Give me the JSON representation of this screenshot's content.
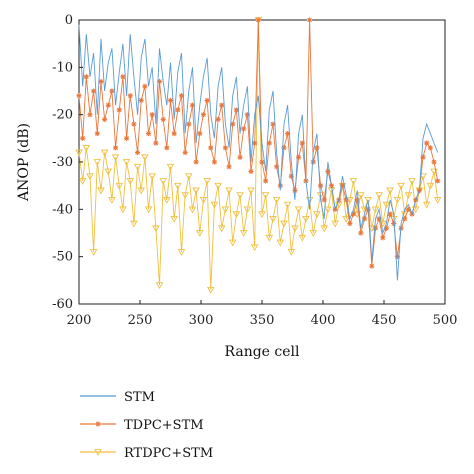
{
  "chart_data": {
    "type": "line",
    "title": "",
    "xlabel": "Range cell",
    "ylabel": "ANOP (dB)",
    "xlim": [
      200,
      500
    ],
    "ylim": [
      -60,
      0
    ],
    "xticks": [
      200,
      250,
      300,
      350,
      400,
      450,
      500
    ],
    "yticks": [
      0,
      -10,
      -20,
      -30,
      -40,
      -50,
      -60
    ],
    "grid": false,
    "legend_position": "bottom-left",
    "series": [
      {
        "name": "STM",
        "color": "#5b9bd5",
        "marker": "none",
        "x": [
          200,
          203,
          206,
          209,
          212,
          215,
          218,
          221,
          224,
          227,
          230,
          233,
          236,
          239,
          242,
          245,
          248,
          251,
          254,
          257,
          260,
          263,
          266,
          269,
          272,
          275,
          278,
          281,
          284,
          287,
          290,
          293,
          296,
          299,
          302,
          305,
          308,
          311,
          314,
          317,
          320,
          323,
          326,
          329,
          332,
          335,
          338,
          341,
          344,
          347,
          350,
          353,
          356,
          359,
          362,
          365,
          368,
          371,
          374,
          377,
          380,
          383,
          386,
          389,
          392,
          395,
          398,
          401,
          404,
          407,
          410,
          413,
          416,
          419,
          422,
          425,
          428,
          431,
          434,
          437,
          440,
          443,
          446,
          449,
          452,
          455,
          458,
          461,
          464,
          467,
          470,
          473,
          476,
          479,
          482,
          485,
          488,
          491,
          494
        ],
        "y": [
          -1,
          -14,
          -3,
          -12,
          -7,
          -20,
          -4,
          -15,
          -9,
          -6,
          -18,
          -11,
          -5,
          -16,
          -3,
          -12,
          -20,
          -8,
          -4,
          -14,
          -10,
          -22,
          -6,
          -13,
          -18,
          -9,
          -21,
          -11,
          -7,
          -24,
          -15,
          -10,
          -26,
          -18,
          -12,
          -8,
          -20,
          -25,
          -14,
          -10,
          -22,
          -27,
          -16,
          -12,
          -24,
          -18,
          -14,
          -30,
          -20,
          -16,
          -26,
          -32,
          -19,
          -15,
          -28,
          -36,
          -22,
          -18,
          -30,
          -38,
          -24,
          -20,
          -34,
          -40,
          -28,
          -24,
          -38,
          -42,
          -30,
          -35,
          -40,
          -38,
          -33,
          -37,
          -42,
          -40,
          -36,
          -44,
          -41,
          -38,
          -51,
          -42,
          -40,
          -45,
          -43,
          -38,
          -41,
          -55,
          -43,
          -40,
          -39,
          -41,
          -38,
          -36,
          -25,
          -22,
          -24,
          -26,
          -28
        ]
      },
      {
        "name": "TDPC+STM",
        "color": "#e9763a",
        "marker": "star",
        "x": [
          200,
          203,
          206,
          209,
          212,
          215,
          218,
          221,
          224,
          227,
          230,
          233,
          236,
          239,
          242,
          245,
          248,
          251,
          254,
          257,
          260,
          263,
          266,
          269,
          272,
          275,
          278,
          281,
          284,
          287,
          290,
          293,
          296,
          299,
          302,
          305,
          308,
          311,
          314,
          317,
          320,
          323,
          326,
          329,
          332,
          335,
          338,
          341,
          344,
          347,
          350,
          353,
          356,
          359,
          362,
          365,
          368,
          371,
          374,
          377,
          380,
          383,
          386,
          389,
          392,
          395,
          398,
          401,
          404,
          407,
          410,
          413,
          416,
          419,
          422,
          425,
          428,
          431,
          434,
          437,
          440,
          443,
          446,
          449,
          452,
          455,
          458,
          461,
          464,
          467,
          470,
          473,
          476,
          479,
          482,
          485,
          488,
          491,
          494
        ],
        "y": [
          -16,
          -25,
          -12,
          -20,
          -15,
          -24,
          -13,
          -21,
          -18,
          -15,
          -27,
          -19,
          -12,
          -25,
          -16,
          -22,
          -28,
          -17,
          -14,
          -24,
          -20,
          -26,
          -13,
          -21,
          -27,
          -17,
          -24,
          -19,
          -16,
          -28,
          -22,
          -18,
          -30,
          -24,
          -20,
          -17,
          -27,
          -30,
          -21,
          -18,
          -27,
          -31,
          -22,
          -19,
          -29,
          -23,
          -20,
          -32,
          -26,
          0,
          -30,
          -34,
          -26,
          -22,
          -31,
          -35,
          -27,
          -24,
          -33,
          -36,
          -29,
          -26,
          -34,
          0,
          -30,
          -27,
          -35,
          -38,
          -32,
          -35,
          -40,
          -38,
          -35,
          -38,
          -43,
          -41,
          -38,
          -45,
          -42,
          -40,
          -52,
          -44,
          -42,
          -46,
          -44,
          -41,
          -43,
          -50,
          -44,
          -42,
          -40,
          -41,
          -38,
          -36,
          -29,
          -26,
          -27,
          -30,
          -34
        ]
      },
      {
        "name": "RTDPC+STM",
        "color": "#f0c040",
        "marker": "triangle-down",
        "x": [
          200,
          203,
          206,
          209,
          212,
          215,
          218,
          221,
          224,
          227,
          230,
          233,
          236,
          239,
          242,
          245,
          248,
          251,
          254,
          257,
          260,
          263,
          266,
          269,
          272,
          275,
          278,
          281,
          284,
          287,
          290,
          293,
          296,
          299,
          302,
          305,
          308,
          311,
          314,
          317,
          320,
          323,
          326,
          329,
          332,
          335,
          338,
          341,
          344,
          347,
          350,
          353,
          356,
          359,
          362,
          365,
          368,
          371,
          374,
          377,
          380,
          383,
          386,
          389,
          392,
          395,
          398,
          401,
          404,
          407,
          410,
          413,
          416,
          419,
          422,
          425,
          428,
          431,
          434,
          437,
          440,
          443,
          446,
          449,
          452,
          455,
          458,
          461,
          464,
          467,
          470,
          473,
          476,
          479,
          482,
          485,
          488,
          491,
          494
        ],
        "y": [
          -28,
          -34,
          -27,
          -33,
          -49,
          -30,
          -36,
          -28,
          -32,
          -38,
          -29,
          -35,
          -40,
          -30,
          -34,
          -43,
          -31,
          -36,
          -29,
          -40,
          -33,
          -44,
          -56,
          -34,
          -38,
          -31,
          -42,
          -35,
          -49,
          -37,
          -33,
          -40,
          -36,
          -45,
          -38,
          -34,
          -57,
          -39,
          -35,
          -44,
          -40,
          -36,
          -47,
          -41,
          -37,
          -45,
          -40,
          -36,
          -48,
          0,
          -41,
          -37,
          -46,
          -42,
          -38,
          -47,
          -43,
          -39,
          -49,
          -44,
          -40,
          -46,
          -42,
          -38,
          -45,
          -41,
          -37,
          -44,
          -40,
          -36,
          -43,
          -39,
          -35,
          -42,
          -38,
          -34,
          -41,
          -37,
          -40,
          -38,
          -44,
          -40,
          -37,
          -43,
          -39,
          -36,
          -42,
          -38,
          -35,
          -41,
          -37,
          -34,
          -40,
          -36,
          -33,
          -39,
          -35,
          -32,
          -38
        ]
      }
    ]
  }
}
